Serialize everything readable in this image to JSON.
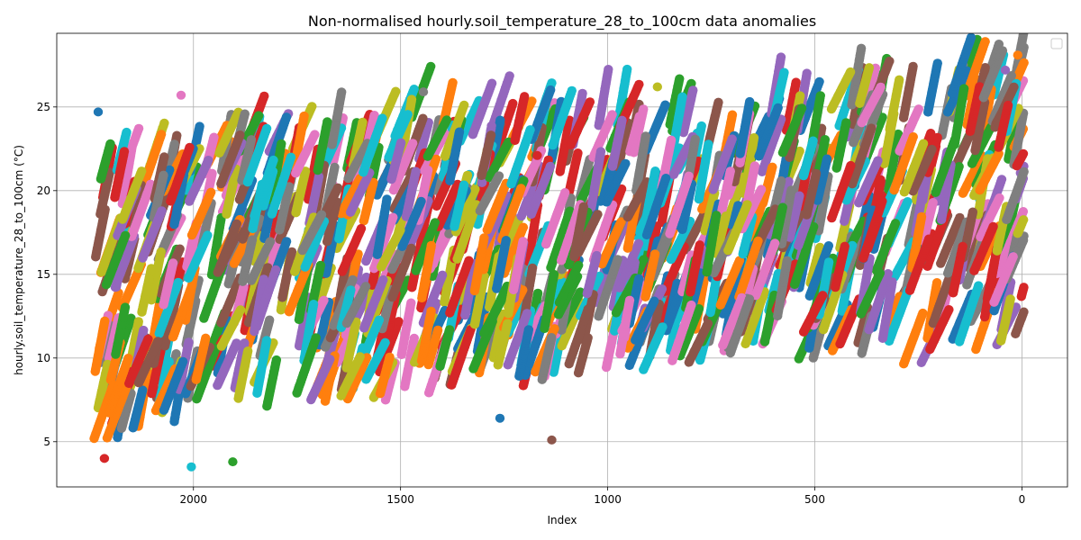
{
  "chart_data": {
    "type": "scatter",
    "title": "Non-normalised hourly.soil_temperature_28_to_100cm data anomalies",
    "xlabel": "Index",
    "ylabel": "hourly.soil_temperature_28_to_100cm (°C)",
    "xlim": [
      2330,
      -110
    ],
    "ylim": [
      2.3,
      29.4
    ],
    "x_ticks": [
      2000,
      1500,
      1000,
      500,
      0
    ],
    "x_tick_labels": [
      "2000",
      "1500",
      "1000",
      "500",
      "0"
    ],
    "y_ticks": [
      5,
      10,
      15,
      20,
      25
    ],
    "y_tick_labels": [
      "5",
      "10",
      "15",
      "20",
      "25"
    ],
    "grid": true,
    "legend": "top-right (empty)",
    "colors": [
      "#1f77b4",
      "#ff7f0e",
      "#2ca02c",
      "#d62728",
      "#9467bd",
      "#8c564b",
      "#e377c2",
      "#7f7f7f",
      "#bcbd22",
      "#17becf"
    ],
    "series_template": {
      "n_points_per_series": 24,
      "index_step_per_point": -1,
      "x_start_range": [
        0,
        2240
      ],
      "series_count": 930,
      "seed": 7
    },
    "envelope": [
      {
        "x": 2240,
        "low": 5.0,
        "high": 21.0
      },
      {
        "x": 2000,
        "low": 6.0,
        "high": 22.0
      },
      {
        "x": 1800,
        "low": 7.0,
        "high": 23.0
      },
      {
        "x": 1500,
        "low": 7.5,
        "high": 24.5
      },
      {
        "x": 1300,
        "low": 8.0,
        "high": 24.0
      },
      {
        "x": 1000,
        "low": 9.0,
        "high": 24.0
      },
      {
        "x": 800,
        "low": 9.5,
        "high": 24.0
      },
      {
        "x": 500,
        "low": 10.0,
        "high": 25.0
      },
      {
        "x": 250,
        "low": 9.5,
        "high": 25.5
      },
      {
        "x": 0,
        "low": 11.0,
        "high": 26.5
      }
    ],
    "outliers": [
      {
        "x": 2230,
        "y": 24.7
      },
      {
        "x": 2215,
        "y": 4.0
      },
      {
        "x": 2030,
        "y": 25.7
      },
      {
        "x": 2005,
        "y": 3.5
      },
      {
        "x": 1905,
        "y": 3.8
      },
      {
        "x": 1135,
        "y": 5.1
      },
      {
        "x": 880,
        "y": 26.2
      },
      {
        "x": 10,
        "y": 28.1
      },
      {
        "x": 40,
        "y": 27.2
      },
      {
        "x": 1445,
        "y": 25.9
      },
      {
        "x": 1260,
        "y": 6.4
      },
      {
        "x": 1170,
        "y": 22.1
      }
    ]
  }
}
